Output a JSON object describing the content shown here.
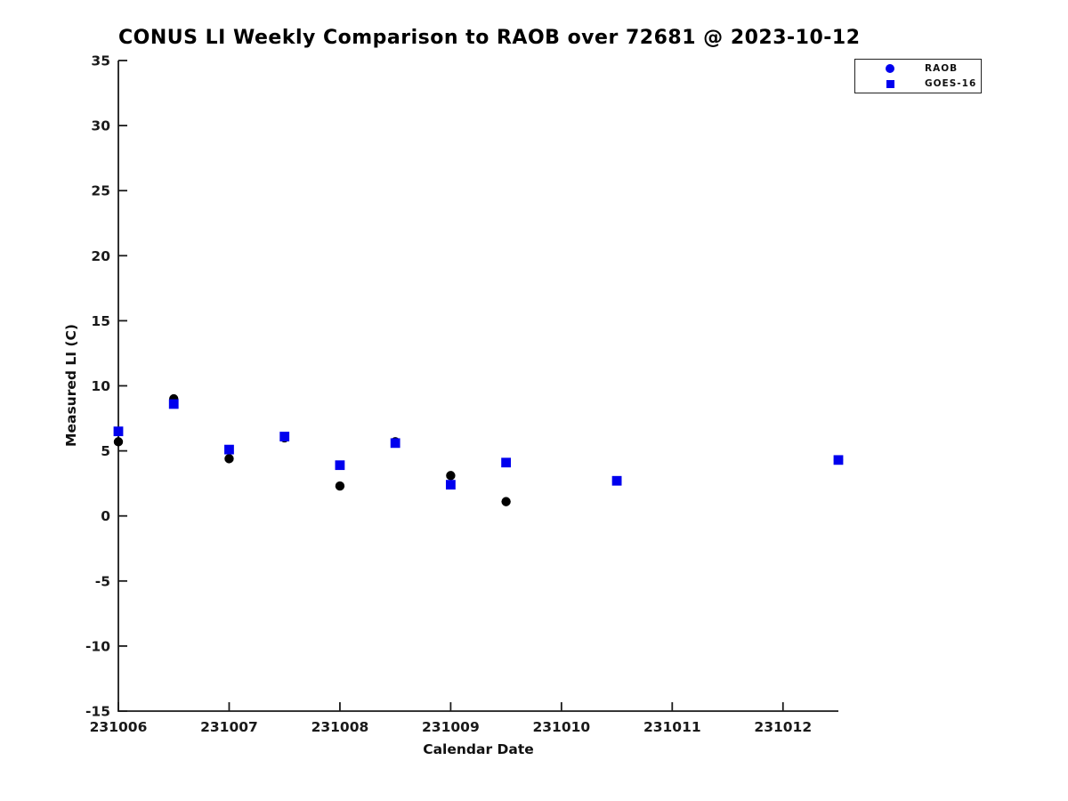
{
  "page": {
    "background": "#ffffff"
  },
  "chart_data": {
    "type": "scatter",
    "title": "CONUS LI Weekly Comparison to RAOB over 72681 @ 2023-10-12",
    "xlabel": "Calendar Date",
    "ylabel": "Measured LI (C)",
    "xlim": [
      231006,
      231012.5
    ],
    "ylim": [
      -15,
      35
    ],
    "xticks": [
      231006,
      231007,
      231008,
      231009,
      231010,
      231011,
      231012
    ],
    "yticks": [
      35,
      30,
      25,
      20,
      15,
      10,
      5,
      0,
      -5,
      -10,
      -15
    ],
    "grid": false,
    "legend_position": "top-right",
    "axis_color": "#1a1a1a",
    "series": [
      {
        "name": "RAOB",
        "marker": "circle",
        "color": "#000000",
        "legend_marker_color": "#0000ee",
        "x": [
          231006,
          231006.5,
          231007,
          231007.5,
          231008,
          231008.5,
          231009,
          231009.5,
          231010.5,
          231012.5
        ],
        "y": [
          5.7,
          9.0,
          4.4,
          6.0,
          2.3,
          5.7,
          3.1,
          1.1,
          2.7,
          4.3
        ]
      },
      {
        "name": "GOES-16",
        "marker": "square",
        "color": "#0000ee",
        "legend_marker_color": "#0000ee",
        "x": [
          231006,
          231006.5,
          231007,
          231007.5,
          231008,
          231008.5,
          231009,
          231009.5,
          231010.5,
          231012.5
        ],
        "y": [
          6.5,
          8.6,
          5.1,
          6.1,
          3.9,
          5.6,
          2.4,
          4.1,
          2.7,
          4.3
        ]
      }
    ]
  }
}
